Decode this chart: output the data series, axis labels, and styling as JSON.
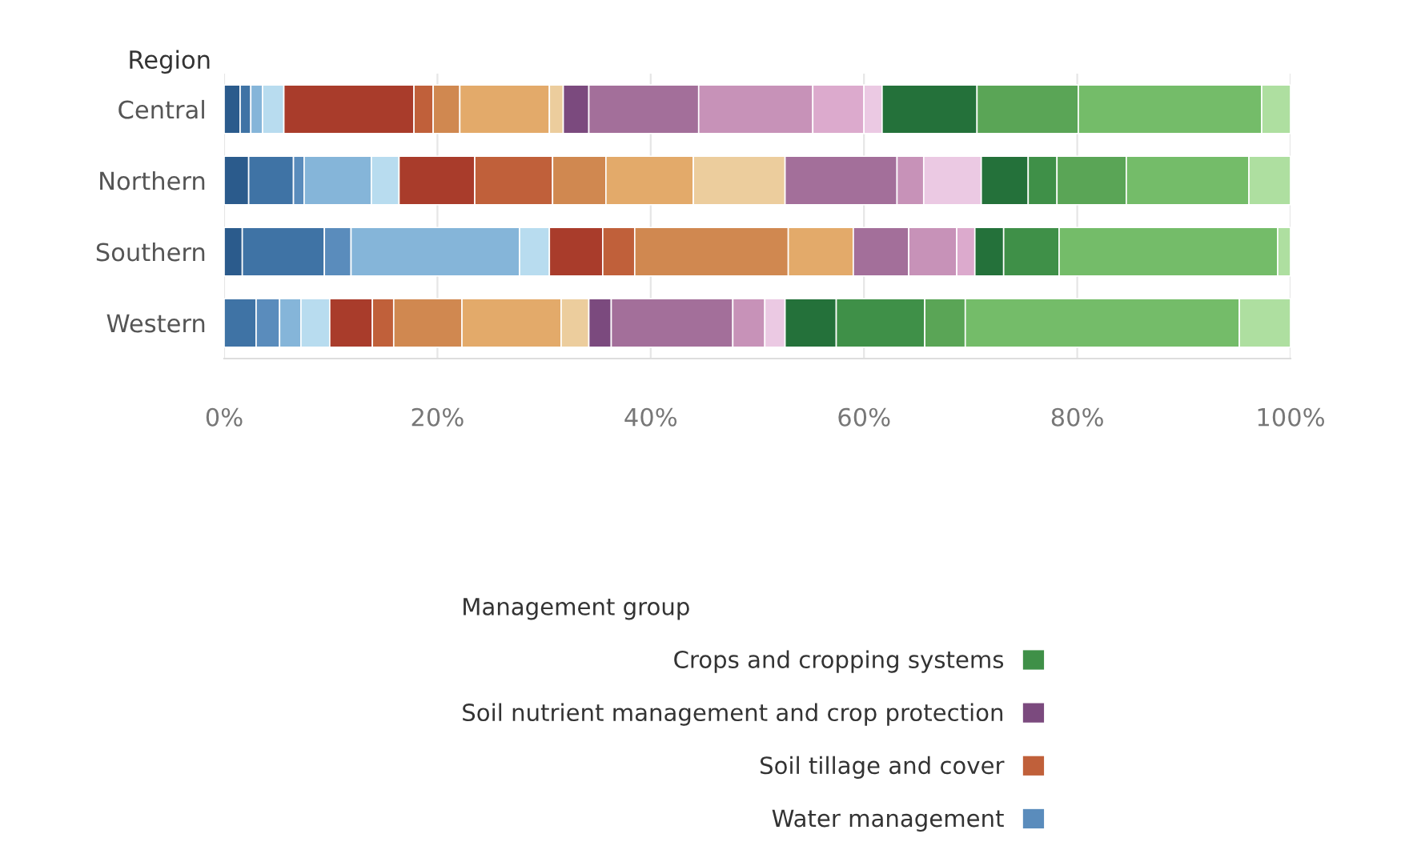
{
  "chart_data": {
    "type": "bar",
    "orientation": "horizontal",
    "stacked": true,
    "ylabel": "Region",
    "legend_title": "Management group",
    "categories": [
      "Central",
      "Northern",
      "Southern",
      "Western"
    ],
    "series": [
      {
        "color": "#2b5b8c",
        "values": [
          1.5,
          2.3,
          1.7,
          0
        ]
      },
      {
        "color": "#3f73a5",
        "values": [
          1.0,
          4.2,
          7.7,
          3.0
        ]
      },
      {
        "name": "Water management",
        "color": "#5a8cbc",
        "values": [
          0,
          1.0,
          2.5,
          2.2
        ]
      },
      {
        "color": "#85b5d9",
        "values": [
          1.1,
          6.3,
          15.8,
          2.0
        ]
      },
      {
        "color": "#b8dcef",
        "values": [
          2.0,
          2.6,
          2.8,
          2.7
        ]
      },
      {
        "color": "#a93c2b",
        "values": [
          12.2,
          7.1,
          5.0,
          4.0
        ]
      },
      {
        "name": "Soil tillage and cover",
        "color": "#c0603a",
        "values": [
          1.8,
          7.3,
          3.0,
          2.0
        ]
      },
      {
        "color": "#d08850",
        "values": [
          2.5,
          5.0,
          14.4,
          6.4
        ]
      },
      {
        "color": "#e3aa6a",
        "values": [
          8.4,
          8.2,
          6.1,
          9.3
        ]
      },
      {
        "color": "#eccd9d",
        "values": [
          1.3,
          8.6,
          0,
          2.6
        ]
      },
      {
        "name": "Soil nutrient management and crop protection",
        "color": "#7b4a7e",
        "values": [
          2.4,
          0,
          0,
          2.1
        ]
      },
      {
        "color": "#a36f9a",
        "values": [
          10.3,
          10.5,
          5.2,
          11.4
        ]
      },
      {
        "color": "#c792b8",
        "values": [
          10.7,
          2.5,
          4.5,
          3.0
        ]
      },
      {
        "color": "#dcaacd",
        "values": [
          4.8,
          0,
          1.7,
          0
        ]
      },
      {
        "color": "#ebc9e3",
        "values": [
          1.7,
          5.4,
          0,
          1.9
        ]
      },
      {
        "color": "#24713a",
        "values": [
          8.9,
          4.4,
          2.7,
          4.8
        ]
      },
      {
        "name": "Crops and cropping systems",
        "color": "#3f9048",
        "values": [
          0,
          2.7,
          5.2,
          8.3
        ]
      },
      {
        "color": "#5aa556",
        "values": [
          9.5,
          6.5,
          0,
          3.8
        ]
      },
      {
        "color": "#74bc69",
        "values": [
          17.2,
          11.5,
          20.5,
          25.7
        ]
      },
      {
        "color": "#aedfa0",
        "values": [
          2.7,
          3.9,
          1.2,
          4.8
        ]
      }
    ],
    "xlim": [
      0,
      100
    ],
    "xticks": [
      {
        "value": 0,
        "label": "0%"
      },
      {
        "value": 20,
        "label": "20%"
      },
      {
        "value": 40,
        "label": "40%"
      },
      {
        "value": 60,
        "label": "60%"
      },
      {
        "value": 80,
        "label": "80%"
      },
      {
        "value": 100,
        "label": "100%"
      }
    ],
    "grid": "x",
    "legend": "bottom"
  }
}
